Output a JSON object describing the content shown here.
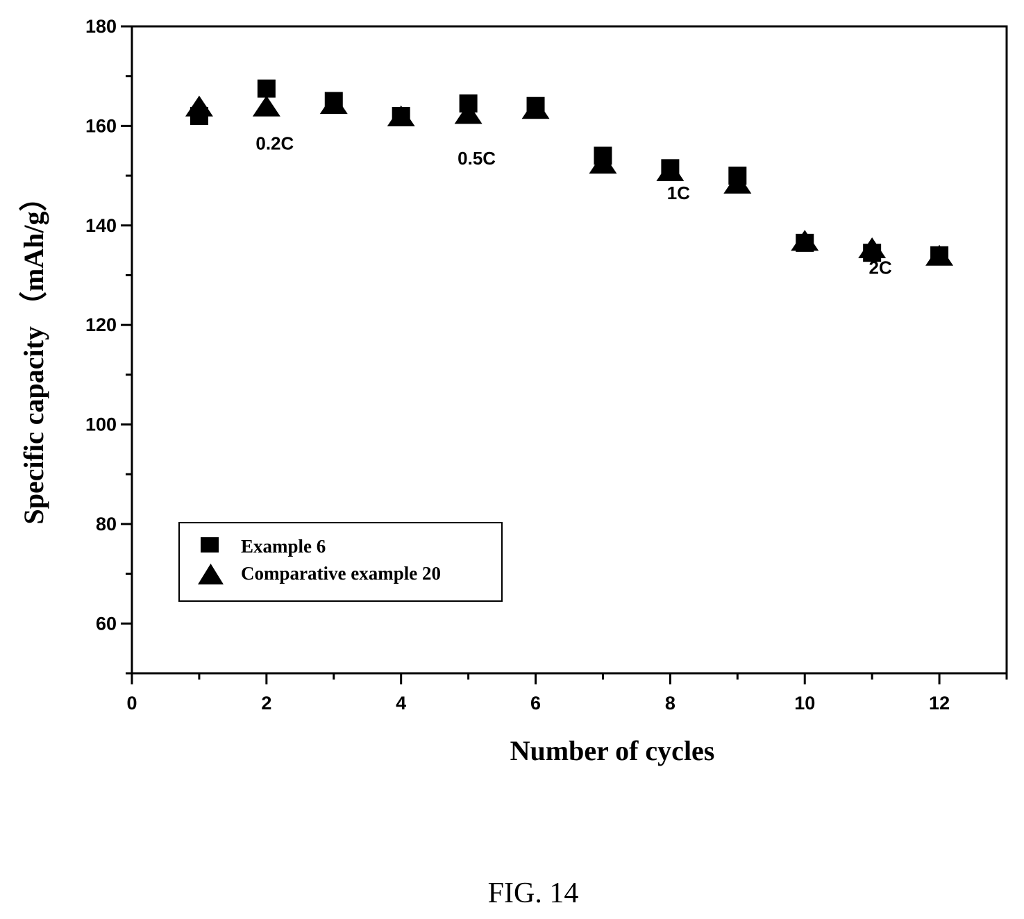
{
  "chart_data": {
    "type": "scatter",
    "xlabel": "Number of cycles",
    "ylabel": "Specific capacity （mAh/g）",
    "xlim": [
      0,
      13
    ],
    "ylim": [
      50,
      180
    ],
    "x_ticks": [
      0,
      2,
      4,
      6,
      8,
      10,
      12
    ],
    "y_ticks": [
      60,
      80,
      100,
      120,
      140,
      160,
      180
    ],
    "grid": false,
    "legend_position": "bottom-left",
    "series": [
      {
        "name": "Example 6",
        "marker": "square",
        "color": "#000000",
        "x": [
          1,
          2,
          3,
          4,
          5,
          6,
          7,
          8,
          9,
          10,
          11,
          12
        ],
        "y": [
          162,
          167.5,
          165,
          162,
          164.5,
          164,
          154,
          151.5,
          150,
          136.5,
          134.5,
          134
        ]
      },
      {
        "name": "Comparative example 20",
        "marker": "triangle",
        "color": "#000000",
        "x": [
          1,
          2,
          3,
          4,
          5,
          6,
          7,
          8,
          9,
          10,
          11,
          12
        ],
        "y": [
          164,
          164,
          164.5,
          162,
          162.5,
          163.5,
          152.5,
          151,
          148.5,
          137,
          135.5,
          134
        ]
      }
    ],
    "annotations": [
      {
        "text": "0.2C",
        "x": 2,
        "y": 156.5
      },
      {
        "text": "0.5C",
        "x": 5,
        "y": 153.5
      },
      {
        "text": "1C",
        "x": 8,
        "y": 146.5
      },
      {
        "text": "2C",
        "x": 11,
        "y": 131.5
      }
    ]
  },
  "caption": "FIG. 14"
}
